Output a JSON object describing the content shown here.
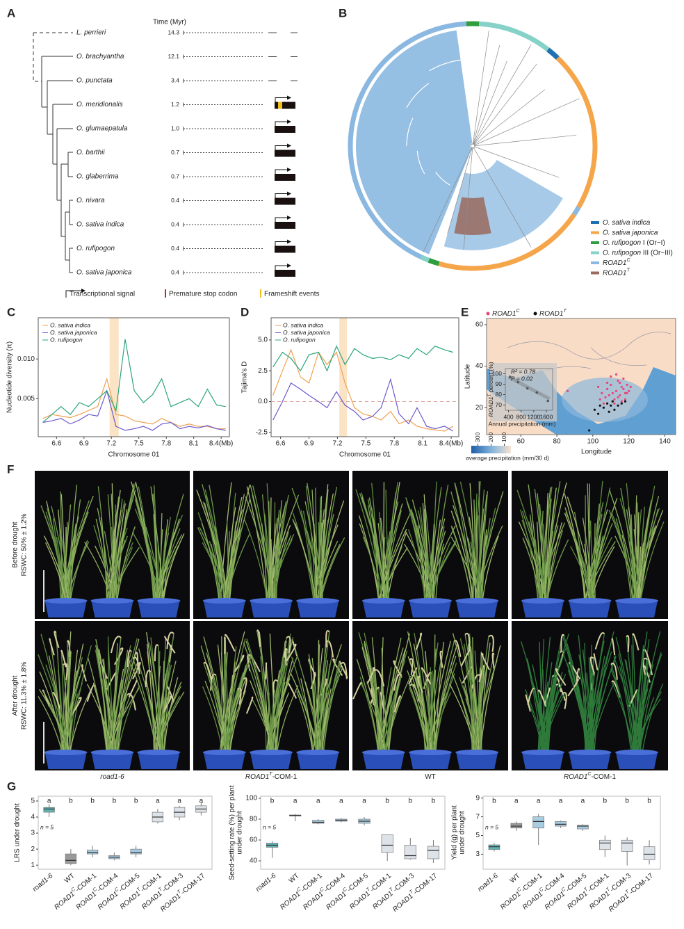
{
  "panel_labels": [
    "A",
    "B",
    "C",
    "D",
    "E",
    "F",
    "G"
  ],
  "panel_a": {
    "time_header": "Time (Myr)",
    "species": [
      {
        "name": "L. perrieri",
        "time": "14.3",
        "gene_status": "absent"
      },
      {
        "name": "O. brachyantha",
        "time": "12.1",
        "gene_status": "absent"
      },
      {
        "name": "O. punctata",
        "time": "3.4",
        "gene_status": "absent"
      },
      {
        "name": "O. meridionalis",
        "time": "1.2",
        "gene_status": "frameshift"
      },
      {
        "name": "O. glumaepatula",
        "time": "1.0",
        "gene_status": "intact"
      },
      {
        "name": "O. barthii",
        "time": "0.7",
        "gene_status": "intact"
      },
      {
        "name": "O. glaberrima",
        "time": "0.7",
        "gene_status": "intact"
      },
      {
        "name": "O. nivara",
        "time": "0.4",
        "gene_status": "intact"
      },
      {
        "name": "O. sativa indica",
        "time": "0.4",
        "gene_status": "intact"
      },
      {
        "name": "O. rufipogon",
        "time": "0.4",
        "gene_status": "intact"
      },
      {
        "name": "O. sativa japonica",
        "time": "0.4",
        "gene_status": "intact"
      }
    ],
    "legend": [
      "Transcriptional signal",
      "Premature stop codon",
      "Frameshift events"
    ]
  },
  "panel_b": {
    "legend": [
      {
        "label": {
          "gene": "O. sativa indica"
        },
        "color": "#1f6fb5"
      },
      {
        "label": {
          "gene": "O. sativa japonica"
        },
        "color": "#f5a54a"
      },
      {
        "label": {
          "gene": "O. rufipogon",
          "suffix": " I (Or−I)"
        },
        "color": "#2e9e3e"
      },
      {
        "label": {
          "gene": "O. rufipogon",
          "suffix": " III (Or−III)"
        },
        "color": "#86d2c9"
      },
      {
        "label": {
          "gene": "ROAD1",
          "sup": "C"
        },
        "color": "#8ab8e0"
      },
      {
        "label": {
          "gene": "ROAD1",
          "sup": "T"
        },
        "color": "#9a6a5e"
      }
    ]
  },
  "panel_f": {
    "rows": [
      {
        "title": "Before drought",
        "condition": "RSWC: 50% ± 1.2%"
      },
      {
        "title": "After drought",
        "condition": "RSWC: 11.3% ± 1.8%"
      }
    ],
    "genotypes": [
      {
        "gene": "road1-6"
      },
      {
        "gene": "ROAD1",
        "sup": "T",
        "suffix": "-COM-1"
      },
      {
        "suffix": "WT"
      },
      {
        "gene": "ROAD1",
        "sup": "C",
        "suffix": "-COM-1"
      }
    ]
  },
  "chart_data": [
    {
      "type": "line",
      "xlabel": "Chromosome 01",
      "ylabel": "Nucleotide diversity (π)",
      "xlim": [
        6.4,
        8.49
      ],
      "ylim": [
        0.0002,
        0.0152
      ],
      "xticks": [
        6.6,
        6.9,
        7.2,
        7.5,
        7.8,
        8.1,
        {
          "value": 8.4,
          "label": "8.4(Mb)"
        }
      ],
      "yticks": [
        0.005,
        {
          "value": 0.01,
          "label": "0.010"
        }
      ],
      "highlight": [
        7.18,
        7.28
      ],
      "highlight_color": "#fbe3c6",
      "x": [
        6.45,
        6.55,
        6.65,
        6.75,
        6.85,
        6.95,
        7.05,
        7.15,
        7.25,
        7.35,
        7.45,
        7.55,
        7.65,
        7.75,
        7.85,
        7.95,
        8.05,
        8.15,
        8.25,
        8.35,
        8.45
      ],
      "series": [
        {
          "name": "O. sativa indica",
          "color": "#f0a050",
          "values": [
            0.0025,
            0.003,
            0.0028,
            0.0026,
            0.003,
            0.0035,
            0.004,
            0.0075,
            0.003,
            0.0028,
            0.0022,
            0.002,
            0.0018,
            0.0025,
            0.002,
            0.0015,
            0.0018,
            0.0015,
            0.0015,
            0.0012,
            0.0012
          ]
        },
        {
          "name": "O. sativa japonica",
          "color": "#6a5acd",
          "values": [
            0.002,
            0.0022,
            0.0025,
            0.0018,
            0.0023,
            0.003,
            0.0028,
            0.006,
            0.0015,
            0.001,
            0.0012,
            0.0015,
            0.001,
            0.0018,
            0.002,
            0.0012,
            0.0015,
            0.0013,
            0.0016,
            0.0012,
            0.001
          ]
        },
        {
          "name": "O. rufipogon",
          "color": "#2aa57a",
          "values": [
            0.002,
            0.003,
            0.004,
            0.003,
            0.0045,
            0.004,
            0.005,
            0.006,
            0.0035,
            0.0125,
            0.006,
            0.0045,
            0.0055,
            0.0075,
            0.004,
            0.0045,
            0.005,
            0.004,
            0.0062,
            0.0042,
            0.004
          ]
        }
      ]
    },
    {
      "type": "line",
      "xlabel": "Chromosome 01",
      "ylabel": "Tajima's D",
      "xlim": [
        6.5,
        8.48
      ],
      "ylim": [
        -2.85,
        6.8
      ],
      "xticks": [
        6.6,
        6.9,
        7.2,
        7.5,
        7.8,
        8.1,
        {
          "value": 8.4,
          "label": "8.4(Mb)"
        }
      ],
      "yticks": [
        -2.5,
        {
          "value": 0,
          "label": "0.0"
        },
        2.5,
        {
          "value": 5,
          "label": "5.0"
        }
      ],
      "reference_line": 0,
      "highlight": [
        7.22,
        7.3
      ],
      "highlight_color": "#fbe3c6",
      "x": [
        6.52,
        6.62,
        6.71,
        6.81,
        6.9,
        7.0,
        7.09,
        7.19,
        7.28,
        7.38,
        7.47,
        7.57,
        7.66,
        7.76,
        7.85,
        7.95,
        8.04,
        8.14,
        8.23,
        8.33,
        8.42
      ],
      "series": [
        {
          "name": "O. sativa indica",
          "color": "#f0a050",
          "values": [
            0.5,
            2.5,
            4.2,
            2.0,
            1.5,
            4.0,
            3.0,
            4.0,
            1.5,
            -0.5,
            -1.0,
            -1.2,
            -1.5,
            -0.8,
            -1.8,
            -1.5,
            -2.0,
            -2.2,
            -2.3,
            -2.4,
            -2.0
          ]
        },
        {
          "name": "O. sativa japonica",
          "color": "#6a5acd",
          "values": [
            -1.5,
            0,
            1.5,
            1.0,
            0.5,
            0,
            -0.5,
            0.8,
            -0.3,
            -0.8,
            -1.5,
            -1.2,
            -0.5,
            1.8,
            -1.0,
            -1.8,
            -0.5,
            -2.0,
            -2.2,
            -2.0,
            -2.4
          ]
        },
        {
          "name": "O. rufipogon",
          "color": "#2aa57a",
          "values": [
            2.8,
            4.0,
            3.5,
            2.5,
            3.8,
            4.0,
            2.5,
            4.5,
            3.0,
            4.3,
            3.8,
            3.5,
            3.6,
            3.4,
            3.8,
            3.5,
            4.3,
            3.8,
            4.5,
            4.2,
            4.0
          ]
        }
      ]
    },
    {
      "type": "scatter",
      "xlabel": "Longitude",
      "ylabel": "Latitude",
      "xlim": [
        41,
        146
      ],
      "ylim": [
        7,
        63
      ],
      "xticks": [
        60,
        80,
        100,
        120,
        140
      ],
      "yticks": [
        20,
        40,
        60
      ],
      "colorbar": {
        "label": "average precipitation (mm/30 d)",
        "ticks": [
          300,
          200,
          100
        ],
        "clim": [
          350,
          50
        ]
      },
      "series": [
        {
          "name": {
            "gene": "ROAD1",
            "sup": "C"
          },
          "color": "#e8457a",
          "x": [
            103,
            105,
            107,
            108,
            110,
            111,
            112,
            113,
            114,
            115,
            116,
            117,
            118,
            119,
            120,
            121,
            104,
            106,
            109,
            112,
            114,
            116,
            118,
            110,
            113,
            115,
            117,
            119,
            108,
            111,
            86
          ],
          "values": [
            30,
            27,
            25,
            29,
            31,
            27,
            24,
            28,
            33,
            26,
            30,
            29,
            24,
            31,
            28,
            30,
            24,
            22,
            26,
            22,
            25,
            23,
            27,
            35,
            36,
            32,
            34,
            27,
            32,
            23,
            28
          ]
        },
        {
          "name": {
            "gene": "ROAD1",
            "sup": "T"
          },
          "color": "#111111",
          "x": [
            101,
            104,
            106,
            108,
            110,
            112,
            114,
            109,
            111,
            116,
            103,
            118,
            98
          ],
          "values": [
            19,
            21,
            20,
            22,
            21,
            19,
            21,
            18,
            23,
            22,
            17,
            23,
            9
          ]
        }
      ]
    },
    {
      "type": "scatter",
      "xlabel": "Annual precipitation (mm)",
      "ylabel": {
        "gene": "ROAD1",
        "sup": "T",
        "suffix": " percent (%)"
      },
      "xlim": [
        300,
        1800
      ],
      "ylim": [
        65,
        105
      ],
      "xticks": [
        400,
        800,
        1200,
        1600
      ],
      "yticks": [
        70,
        80,
        90,
        100
      ],
      "annotations": [
        "R² = 0.78",
        "P = 0.02"
      ],
      "fit_line": {
        "x": [
          400,
          1700
        ],
        "values": [
          97,
          76
        ]
      },
      "series": [
        {
          "color": "#555555",
          "x": [
            450,
            700,
            1000,
            1300,
            1650
          ],
          "values": [
            97,
            92,
            86,
            82,
            74
          ]
        }
      ]
    },
    {
      "type": "box",
      "ylabel": [
        "LRS under drought"
      ],
      "ylim": [
        0.75,
        5.3
      ],
      "yticks": [
        1,
        2,
        3,
        4,
        5
      ],
      "annotation": "n = 5",
      "categories": [
        {
          "gene": "road1-6"
        },
        {
          "suffix": "WT"
        },
        {
          "gene": "ROAD1",
          "sup": "C",
          "suffix": "-COM-1"
        },
        {
          "gene": "ROAD1",
          "sup": "C",
          "suffix": "-COM-4"
        },
        {
          "gene": "ROAD1",
          "sup": "C",
          "suffix": "-COM-5"
        },
        {
          "gene": "ROAD1",
          "sup": "T",
          "suffix": "-COM-1"
        },
        {
          "gene": "ROAD1",
          "sup": "T",
          "suffix": "-COM-3"
        },
        {
          "gene": "ROAD1",
          "sup": "T",
          "suffix": "-COM-17"
        }
      ],
      "colors": [
        "#5fb3b3",
        "#9a9a9a",
        "#a8cce0",
        "#a8cce0",
        "#a8cce0",
        "#dde3e8",
        "#dde3e8",
        "#dde3e8"
      ],
      "letters": [
        "a",
        "b",
        "b",
        "b",
        "b",
        "a",
        "a",
        "a"
      ],
      "boxes": [
        [
          4.0,
          4.3,
          4.5,
          4.6,
          4.8
        ],
        [
          1.0,
          1.1,
          1.3,
          1.7,
          2.0
        ],
        [
          1.5,
          1.7,
          1.8,
          1.95,
          2.2
        ],
        [
          1.3,
          1.4,
          1.5,
          1.6,
          1.8
        ],
        [
          1.5,
          1.7,
          1.8,
          2.0,
          2.2
        ],
        [
          3.6,
          3.7,
          4.0,
          4.3,
          4.5
        ],
        [
          3.8,
          4.0,
          4.3,
          4.6,
          4.7
        ],
        [
          4.1,
          4.3,
          4.5,
          4.7,
          4.9
        ]
      ]
    },
    {
      "type": "box",
      "ylabel": [
        "Seed-setting rate (%) per plant",
        "under drought"
      ],
      "ylim": [
        32,
        102
      ],
      "yticks": [
        40,
        60,
        80,
        100
      ],
      "annotation": "n = 5",
      "categories": [
        {
          "gene": "road1-6"
        },
        {
          "suffix": "WT"
        },
        {
          "gene": "ROAD1",
          "sup": "C",
          "suffix": "-COM-1"
        },
        {
          "gene": "ROAD1",
          "sup": "C",
          "suffix": "-COM-4"
        },
        {
          "gene": "ROAD1",
          "sup": "C",
          "suffix": "-COM-5"
        },
        {
          "gene": "ROAD1",
          "sup": "T",
          "suffix": "-COM-1"
        },
        {
          "gene": "ROAD1",
          "sup": "T",
          "suffix": "-COM-3"
        },
        {
          "gene": "ROAD1",
          "sup": "T",
          "suffix": "-COM-17"
        }
      ],
      "colors": [
        "#5fb3b3",
        "#9a9a9a",
        "#a8cce0",
        "#a8cce0",
        "#a8cce0",
        "#dde3e8",
        "#dde3e8",
        "#dde3e8"
      ],
      "letters": [
        "b",
        "a",
        "a",
        "a",
        "a",
        "b",
        "b",
        "b"
      ],
      "boxes": [
        [
          43,
          53,
          55,
          57,
          59
        ],
        [
          78,
          83,
          83.5,
          84,
          85
        ],
        [
          75,
          76,
          77,
          79,
          80
        ],
        [
          77,
          78,
          79,
          80,
          81
        ],
        [
          74,
          76,
          78,
          80,
          82
        ],
        [
          40,
          48,
          55,
          65,
          65
        ],
        [
          41,
          42,
          45,
          55,
          62
        ],
        [
          38,
          42,
          50,
          54,
          60
        ]
      ]
    },
    {
      "type": "box",
      "ylabel": [
        "Yield (g) per plant",
        "under drought"
      ],
      "ylim": [
        1.4,
        9.2
      ],
      "yticks": [
        3,
        5,
        7,
        9
      ],
      "annotation": "n = 5",
      "categories": [
        {
          "gene": "road1-6"
        },
        {
          "suffix": "WT"
        },
        {
          "gene": "ROAD1",
          "sup": "C",
          "suffix": "-COM-1"
        },
        {
          "gene": "ROAD1",
          "sup": "C",
          "suffix": "-COM-4"
        },
        {
          "gene": "ROAD1",
          "sup": "C",
          "suffix": "-COM-5"
        },
        {
          "gene": "ROAD1",
          "sup": "T",
          "suffix": "-COM-1"
        },
        {
          "gene": "ROAD1",
          "sup": "T",
          "suffix": "-COM-3"
        },
        {
          "gene": "ROAD1",
          "sup": "T",
          "suffix": "-COM-17"
        }
      ],
      "colors": [
        "#5fb3b3",
        "#9a9a9a",
        "#a8cce0",
        "#a8cce0",
        "#a8cce0",
        "#dde3e8",
        "#dde3e8",
        "#dde3e8"
      ],
      "letters": [
        "b",
        "a",
        "a",
        "a",
        "a",
        "b",
        "b",
        "b"
      ],
      "boxes": [
        [
          3.3,
          3.5,
          3.8,
          4.0,
          4.2
        ],
        [
          5.5,
          5.8,
          6.0,
          6.3,
          6.5
        ],
        [
          4.0,
          5.8,
          6.5,
          7.0,
          7.3
        ],
        [
          5.8,
          6.0,
          6.2,
          6.5,
          6.6
        ],
        [
          5.5,
          5.7,
          6.0,
          6.1,
          6.2
        ],
        [
          2.7,
          3.5,
          4.2,
          4.5,
          5.0
        ],
        [
          1.8,
          3.3,
          4.2,
          4.5,
          4.8
        ],
        [
          1.9,
          2.4,
          3.0,
          3.8,
          4.5
        ]
      ]
    }
  ]
}
